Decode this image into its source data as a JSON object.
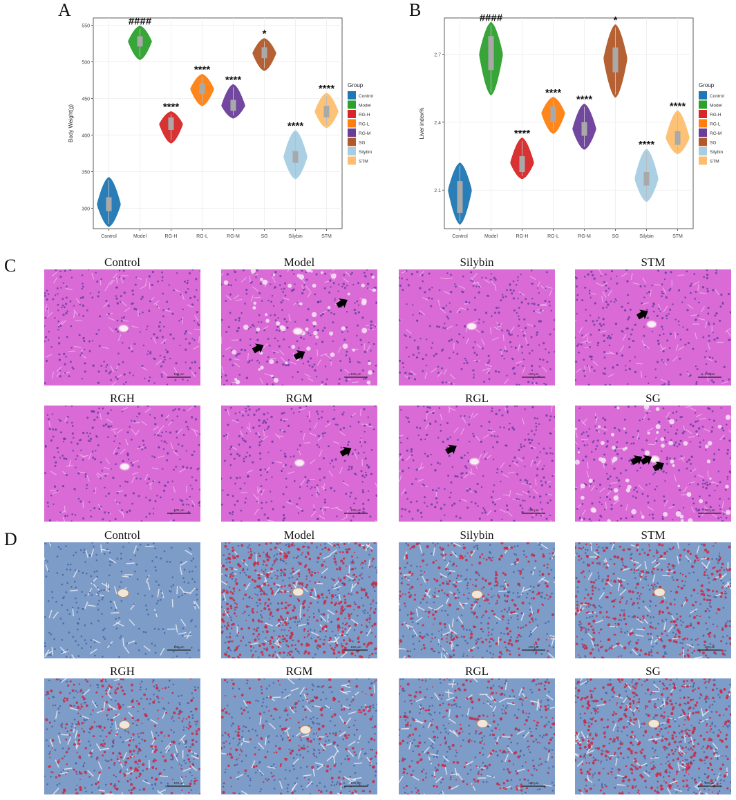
{
  "panel_letters": {
    "a": "A",
    "b": "B",
    "c": "C",
    "d": "D"
  },
  "chart_data": [
    {
      "type": "violin",
      "ylabel": "Body Weight(g)",
      "xlabel": "",
      "ylim": [
        272,
        560
      ],
      "yticks": [
        300,
        350,
        400,
        450,
        500,
        550
      ],
      "grid": true,
      "legend_title": "Group",
      "legend_position": "right",
      "groups": [
        {
          "name": "Control",
          "min": 275,
          "max": 342,
          "median": 305,
          "q1": 296,
          "q3": 315,
          "sig": "",
          "color": "#1f77b4"
        },
        {
          "name": "Model",
          "min": 503,
          "max": 549,
          "median": 528,
          "q1": 521,
          "q3": 535,
          "sig": "####",
          "color": "#2ca02c"
        },
        {
          "name": "RG-H",
          "min": 389,
          "max": 432,
          "median": 415,
          "q1": 407,
          "q3": 424,
          "sig": "****",
          "color": "#d62728"
        },
        {
          "name": "RG-L",
          "min": 440,
          "max": 483,
          "median": 463,
          "q1": 456,
          "q3": 471,
          "sig": "****",
          "color": "#ff7f0e"
        },
        {
          "name": "RG-M",
          "min": 423,
          "max": 469,
          "median": 440,
          "q1": 433,
          "q3": 448,
          "sig": "****",
          "color": "#6a3d9a"
        },
        {
          "name": "SG",
          "min": 488,
          "max": 532,
          "median": 512,
          "q1": 505,
          "q3": 520,
          "sig": "*",
          "color": "#b15928"
        },
        {
          "name": "Silybin",
          "min": 340,
          "max": 406,
          "median": 370,
          "q1": 362,
          "q3": 378,
          "sig": "****",
          "color": "#a6cee3"
        },
        {
          "name": "STM",
          "min": 410,
          "max": 457,
          "median": 432,
          "q1": 424,
          "q3": 440,
          "sig": "****",
          "color": "#fdbf6f"
        }
      ]
    },
    {
      "type": "violin",
      "ylabel": "Liver index%",
      "xlabel": "",
      "ylim": [
        1.93,
        2.86
      ],
      "yticks": [
        2.1,
        2.4,
        2.7
      ],
      "grid": true,
      "legend_title": "Group",
      "legend_position": "right",
      "groups": [
        {
          "name": "Control",
          "min": 1.95,
          "max": 2.22,
          "median": 2.1,
          "q1": 2.0,
          "q3": 2.14,
          "sig": "",
          "color": "#1f77b4"
        },
        {
          "name": "Model",
          "min": 2.52,
          "max": 2.84,
          "median": 2.7,
          "q1": 2.63,
          "q3": 2.78,
          "sig": "####",
          "color": "#2ca02c"
        },
        {
          "name": "RG-H",
          "min": 2.15,
          "max": 2.33,
          "median": 2.22,
          "q1": 2.18,
          "q3": 2.25,
          "sig": "****",
          "color": "#d62728"
        },
        {
          "name": "RG-L",
          "min": 2.35,
          "max": 2.51,
          "median": 2.44,
          "q1": 2.4,
          "q3": 2.47,
          "sig": "****",
          "color": "#ff7f0e"
        },
        {
          "name": "RG-M",
          "min": 2.28,
          "max": 2.48,
          "median": 2.37,
          "q1": 2.34,
          "q3": 2.4,
          "sig": "****",
          "color": "#6a3d9a"
        },
        {
          "name": "SG",
          "min": 2.51,
          "max": 2.83,
          "median": 2.68,
          "q1": 2.62,
          "q3": 2.73,
          "sig": "*",
          "color": "#b15928"
        },
        {
          "name": "Silybin",
          "min": 2.05,
          "max": 2.28,
          "median": 2.15,
          "q1": 2.12,
          "q3": 2.18,
          "sig": "****",
          "color": "#a6cee3"
        },
        {
          "name": "STM",
          "min": 2.26,
          "max": 2.45,
          "median": 2.33,
          "q1": 2.3,
          "q3": 2.36,
          "sig": "****",
          "color": "#fdbf6f"
        }
      ]
    }
  ],
  "he_panels": [
    {
      "title": "Control",
      "arrows": 0,
      "pattern": "normal"
    },
    {
      "title": "Model",
      "arrows": 3,
      "pattern": "steatosis"
    },
    {
      "title": "Silybin",
      "arrows": 0,
      "pattern": "normal"
    },
    {
      "title": "STM",
      "arrows": 1,
      "pattern": "normal"
    },
    {
      "title": "RGH",
      "arrows": 0,
      "pattern": "normal"
    },
    {
      "title": "RGM",
      "arrows": 1,
      "pattern": "normal"
    },
    {
      "title": "RGL",
      "arrows": 1,
      "pattern": "normal"
    },
    {
      "title": "SG",
      "arrows": 3,
      "pattern": "steatosis"
    }
  ],
  "oil_red_panels": [
    {
      "title": "Control",
      "lipid_fraction": 0.0
    },
    {
      "title": "Model",
      "lipid_fraction": 0.65
    },
    {
      "title": "Silybin",
      "lipid_fraction": 0.35
    },
    {
      "title": "STM",
      "lipid_fraction": 0.45
    },
    {
      "title": "RGH",
      "lipid_fraction": 0.35
    },
    {
      "title": "RGM",
      "lipid_fraction": 0.25
    },
    {
      "title": "RGL",
      "lipid_fraction": 0.3
    },
    {
      "title": "SG",
      "lipid_fraction": 0.6
    }
  ],
  "scale_bar_label": "100 μm",
  "colors": {
    "he_base": "#d96ad6",
    "he_nuclei": "#5a3a9a",
    "oil_base": "#7e9cc8",
    "oil_lipid": "#d0203a"
  }
}
